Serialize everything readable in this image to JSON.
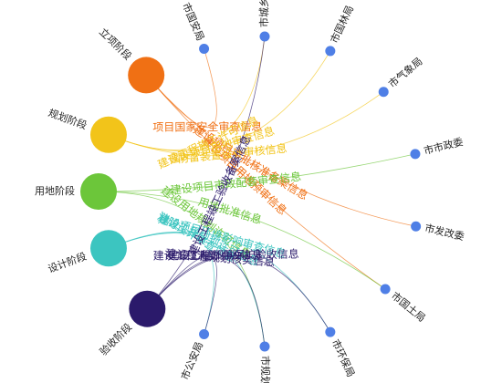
{
  "stages": [
    {
      "label": "立项阶段",
      "color": "#f07014"
    },
    {
      "label": "规划阶段",
      "color": "#f2c41a"
    },
    {
      "label": "用地阶段",
      "color": "#6cc63a"
    },
    {
      "label": "设计阶段",
      "color": "#3cc5c0"
    },
    {
      "label": "验收阶段",
      "color": "#2b1a6b"
    }
  ],
  "departments": [
    {
      "label": "市国安局"
    },
    {
      "label": "市城乡建委"
    },
    {
      "label": "市国林局"
    },
    {
      "label": "市气象局"
    },
    {
      "label": "市市政委"
    },
    {
      "label": "市发改委"
    },
    {
      "label": "市国土局"
    },
    {
      "label": "市环保局"
    },
    {
      "label": "市规划局"
    },
    {
      "label": "市公安局"
    }
  ],
  "department_color": "#4f7fe6",
  "edges": [
    {
      "source": 0,
      "target": 0,
      "label": "项目国家安全审查信息"
    },
    {
      "source": 0,
      "target": 5,
      "label": "建设项目审批核准备案信息"
    },
    {
      "source": 0,
      "target": 6,
      "label": "建设项目用地预审信息"
    },
    {
      "source": 1,
      "target": 1,
      "label": "建设工程施工许可信息"
    },
    {
      "source": 1,
      "target": 2,
      "label": "建设项目用地审查信息"
    },
    {
      "source": 1,
      "target": 3,
      "label": "防雷装置设计审核信息"
    },
    {
      "source": 2,
      "target": 4,
      "label": "建设项目市政配套审查信息"
    },
    {
      "source": 2,
      "target": 6,
      "label": "用地批准信息"
    },
    {
      "source": 2,
      "target": 8,
      "label": "建设用地规划许可信息"
    },
    {
      "source": 3,
      "target": 9,
      "label": "消防设计审查信息"
    },
    {
      "source": 3,
      "target": 7,
      "label": "建设项目环境影响审查信息"
    },
    {
      "source": 3,
      "target": 8,
      "label": "建设工程规划许可信息"
    },
    {
      "source": 4,
      "target": 1,
      "label": "建设工程竣工验收备案信息"
    },
    {
      "source": 4,
      "target": 7,
      "label": "建设工程环境保护验收信息"
    },
    {
      "source": 4,
      "target": 8,
      "label": "建设工程规划核实信息"
    },
    {
      "source": 4,
      "target": 9,
      "label": "建设工程消防验收信息"
    }
  ]
}
